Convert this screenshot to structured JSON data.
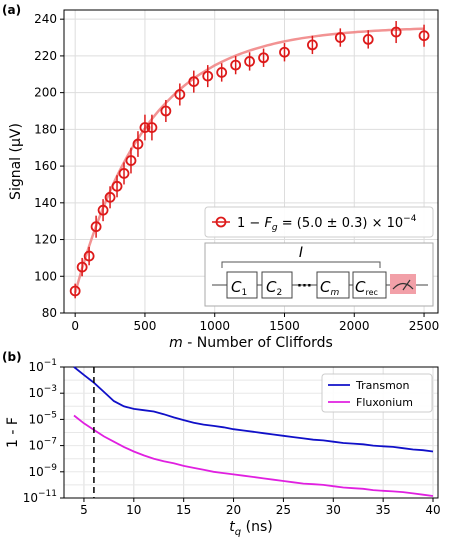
{
  "chart_data": [
    {
      "panel_label": "(a)",
      "type": "scatter",
      "xlabel": "m - Number of Cliffords",
      "ylabel": "Signal (μV)",
      "xlim": [
        -80,
        2600
      ],
      "ylim": [
        80,
        245
      ],
      "xticks": [
        0,
        500,
        1000,
        1500,
        2000,
        2500
      ],
      "yticks": [
        80,
        100,
        120,
        140,
        160,
        180,
        200,
        220,
        240
      ],
      "grid": true,
      "legend_position": "lower-right",
      "series": [
        {
          "name": "1 − F_g = (5.0 ± 0.3) × 10^-4",
          "marker": "open-circle",
          "color": "#dd1a1a",
          "fit_color": "#f08080",
          "x": [
            0,
            50,
            100,
            150,
            200,
            250,
            300,
            350,
            400,
            450,
            500,
            550,
            650,
            750,
            850,
            950,
            1050,
            1150,
            1250,
            1350,
            1500,
            1700,
            1900,
            2100,
            2300,
            2500
          ],
          "y": [
            92,
            105,
            111,
            127,
            136,
            143,
            149,
            156,
            163,
            172,
            181,
            181,
            190,
            199,
            206,
            209,
            211,
            215,
            217,
            219,
            222,
            226,
            230,
            229,
            233,
            231
          ],
          "yerr": [
            4,
            5,
            5,
            6,
            6,
            6,
            6,
            6,
            7,
            7,
            7,
            7,
            6,
            6,
            6,
            6,
            5,
            5,
            5,
            5,
            5,
            5,
            5,
            5,
            6,
            6
          ]
        }
      ],
      "fit": {
        "model": "A - B*exp(-x/tau)",
        "A": 236,
        "B": 145,
        "tau": 520
      },
      "inset_circuit": {
        "top_label": "I",
        "gates": [
          "C",
          "C",
          "C",
          "C"
        ],
        "gate_subscripts": [
          "1",
          "2",
          "m",
          "rec"
        ],
        "ellipsis": "···",
        "measurement_color": "#f2a0a8"
      }
    },
    {
      "panel_label": "(b)",
      "type": "line",
      "xlabel": "t_q (ns)",
      "ylabel": "1 - F",
      "xlim": [
        3,
        40.5
      ],
      "ylim_log10": [
        -11,
        -1
      ],
      "yscale": "log",
      "xticks": [
        5,
        10,
        15,
        20,
        25,
        30,
        35,
        40
      ],
      "ytick_exponents": [
        -11,
        -9,
        -7,
        -5,
        -3,
        -1
      ],
      "grid": true,
      "legend_position": "top-right",
      "vline_x": 6,
      "series": [
        {
          "name": "Transmon",
          "color": "#1010c8",
          "x": [
            4,
            5,
            6,
            7,
            8,
            9,
            10,
            11,
            12,
            13,
            14,
            15,
            16,
            17,
            18,
            19,
            20,
            21,
            22,
            23,
            24,
            25,
            26,
            27,
            28,
            29,
            30,
            31,
            32,
            33,
            34,
            35,
            36,
            37,
            38,
            39,
            40
          ],
          "log10_y": [
            -1.0,
            -1.6,
            -2.2,
            -2.9,
            -3.6,
            -4.0,
            -4.2,
            -4.3,
            -4.4,
            -4.6,
            -4.85,
            -5.05,
            -5.25,
            -5.4,
            -5.5,
            -5.6,
            -5.75,
            -5.85,
            -5.95,
            -6.05,
            -6.15,
            -6.25,
            -6.35,
            -6.45,
            -6.55,
            -6.6,
            -6.7,
            -6.8,
            -6.85,
            -6.9,
            -7.0,
            -7.05,
            -7.1,
            -7.2,
            -7.3,
            -7.35,
            -7.45
          ]
        },
        {
          "name": "Fluxonium",
          "color": "#e020e0",
          "x": [
            4,
            5,
            6,
            7,
            8,
            9,
            10,
            11,
            12,
            13,
            14,
            15,
            16,
            17,
            18,
            19,
            20,
            21,
            22,
            23,
            24,
            25,
            26,
            27,
            28,
            29,
            30,
            31,
            32,
            33,
            34,
            35,
            36,
            37,
            38,
            39,
            40
          ],
          "log10_y": [
            -4.7,
            -5.3,
            -5.8,
            -6.3,
            -6.7,
            -7.1,
            -7.45,
            -7.75,
            -8.0,
            -8.2,
            -8.35,
            -8.55,
            -8.7,
            -8.85,
            -9.0,
            -9.1,
            -9.2,
            -9.3,
            -9.4,
            -9.5,
            -9.6,
            -9.7,
            -9.8,
            -9.9,
            -9.95,
            -10.0,
            -10.1,
            -10.2,
            -10.25,
            -10.3,
            -10.4,
            -10.45,
            -10.5,
            -10.55,
            -10.65,
            -10.75,
            -10.85
          ]
        }
      ]
    }
  ]
}
